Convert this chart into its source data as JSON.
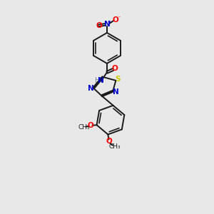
{
  "bg_color": "#e8e8e8",
  "bond_color": "#1a1a1a",
  "colors": {
    "N": "#0000cc",
    "O": "#ff0000",
    "S": "#cccc00",
    "H": "#708090",
    "C": "#1a1a1a"
  },
  "figsize": [
    3.0,
    3.0
  ],
  "dpi": 100
}
